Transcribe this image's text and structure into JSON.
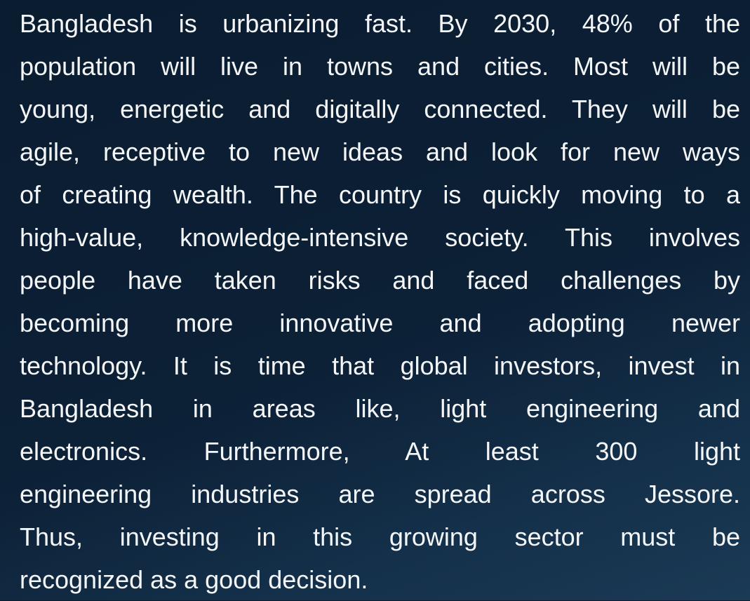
{
  "paragraph": {
    "lines": [
      "Bangladesh is urbanizing fast. By 2030, 48% of the",
      "population will live in towns and cities. Most will be",
      "young, energetic and digitally connected. They will be",
      "agile, receptive to new ideas and look for new ways",
      "of creating wealth. The country is quickly moving to a",
      "high-value, knowledge-intensive society. This involves",
      "people have taken risks and faced challenges by",
      "becoming more innovative and adopting newer",
      "technology. It is time that global investors, invest in",
      "Bangladesh in areas like, light engineering and",
      "electronics. Furthermore, At least 300 light",
      "engineering industries are spread across Jessore.",
      "Thus, investing in this growing sector must be",
      "recognized as a good decision."
    ]
  }
}
